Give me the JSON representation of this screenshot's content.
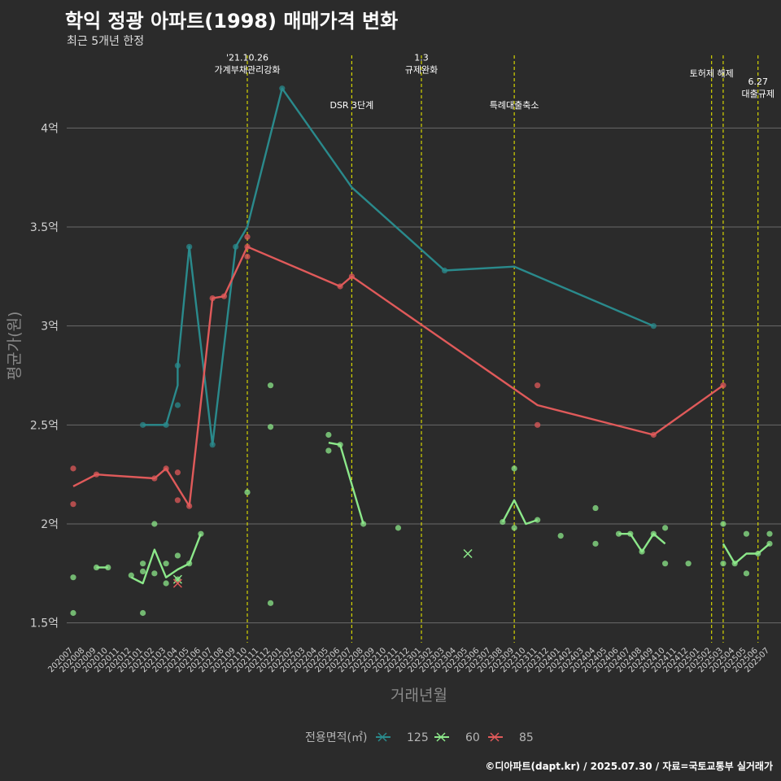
{
  "header": {
    "title": "학익 정광 아파트(1998) 매매가격 변화",
    "subtitle": "최근 5개년 한정"
  },
  "footer": "©디아파트(dapt.kr) / 2025.07.30 / 자료=국토교통부 실거래가",
  "colors": {
    "background": "#2b2b2b",
    "grid": "#6a6a6a",
    "vline": "#d4d400",
    "s125": "#2a8a8c",
    "s60": "#8ce88a",
    "s85": "#e05a5a"
  },
  "chart_data": {
    "type": "line",
    "xlabel": "거래년월",
    "ylabel": "평균가(원)",
    "ylim": [
      1.4,
      4.4
    ],
    "y_ticks": [
      {
        "v": 1.5,
        "label": "1.5억"
      },
      {
        "v": 2.0,
        "label": "2억"
      },
      {
        "v": 2.5,
        "label": "2.5억"
      },
      {
        "v": 3.0,
        "label": "3억"
      },
      {
        "v": 3.5,
        "label": "3.5억"
      },
      {
        "v": 4.0,
        "label": "4억"
      }
    ],
    "x_categories": [
      "202007",
      "202008",
      "202009",
      "202010",
      "202011",
      "202012",
      "202101",
      "202102",
      "202103",
      "202104",
      "202105",
      "202106",
      "202107",
      "202108",
      "202109",
      "202110",
      "202111",
      "202112",
      "202201",
      "202202",
      "202203",
      "202204",
      "202205",
      "202206",
      "202207",
      "202208",
      "202209",
      "202210",
      "202211",
      "202212",
      "202301",
      "202302",
      "202303",
      "202304",
      "202305",
      "202306",
      "202307",
      "202308",
      "202309",
      "202310",
      "202311",
      "202312",
      "202401",
      "202402",
      "202403",
      "202404",
      "202405",
      "202406",
      "202407",
      "202408",
      "202409",
      "202410",
      "202411",
      "202412",
      "202501",
      "202502",
      "202503",
      "202504",
      "202505",
      "202506",
      "202507"
    ],
    "legend_title": "전용면적(㎡)",
    "series": [
      {
        "name": "125",
        "line": [
          [
            "202101",
            2.5
          ],
          [
            "202103",
            2.5
          ],
          [
            "202104",
            2.7
          ],
          [
            "202104",
            2.8
          ],
          [
            "202105",
            3.4
          ],
          [
            "202107",
            2.4
          ],
          [
            "202109",
            3.4
          ],
          [
            "202110",
            3.5
          ],
          [
            "202201",
            4.2
          ],
          [
            "202207",
            3.7
          ],
          [
            "202303",
            3.28
          ],
          [
            "202309",
            3.3
          ],
          [
            "202409",
            3.0
          ]
        ],
        "points": [
          [
            "202101",
            2.5
          ],
          [
            "202103",
            2.5
          ],
          [
            "202104",
            2.6
          ],
          [
            "202104",
            2.8
          ],
          [
            "202105",
            3.4
          ],
          [
            "202107",
            2.4
          ],
          [
            "202109",
            3.4
          ],
          [
            "202201",
            4.2
          ],
          [
            "202303",
            3.28
          ],
          [
            "202409",
            3.0
          ]
        ]
      },
      {
        "name": "60",
        "line_segments": [
          [
            [
              "202009",
              1.78
            ],
            [
              "202010",
              1.78
            ]
          ],
          [
            [
              "202012",
              1.73
            ],
            [
              "202101",
              1.7
            ],
            [
              "202102",
              1.87
            ],
            [
              "202103",
              1.73
            ],
            [
              "202104",
              1.77
            ],
            [
              "202105",
              1.8
            ],
            [
              "202106",
              1.95
            ]
          ],
          [
            [
              "202205",
              2.41
            ],
            [
              "202206",
              2.4
            ],
            [
              "202208",
              2.0
            ]
          ],
          [
            [
              "202308",
              2.01
            ],
            [
              "202309",
              2.12
            ],
            [
              "202310",
              2.0
            ],
            [
              "202311",
              2.02
            ]
          ],
          [
            [
              "202406",
              1.95
            ],
            [
              "202407",
              1.95
            ],
            [
              "202408",
              1.86
            ],
            [
              "202409",
              1.95
            ],
            [
              "202410",
              1.9
            ]
          ],
          [
            [
              "202503",
              1.9
            ],
            [
              "202504",
              1.8
            ],
            [
              "202505",
              1.85
            ],
            [
              "202506",
              1.85
            ],
            [
              "202507",
              1.9
            ]
          ]
        ],
        "points": [
          [
            "202007",
            1.73
          ],
          [
            "202007",
            1.55
          ],
          [
            "202009",
            1.78
          ],
          [
            "202010",
            1.78
          ],
          [
            "202012",
            1.74
          ],
          [
            "202101",
            1.8
          ],
          [
            "202101",
            1.76
          ],
          [
            "202101",
            1.55
          ],
          [
            "202102",
            2.0
          ],
          [
            "202102",
            1.75
          ],
          [
            "202103",
            1.8
          ],
          [
            "202103",
            1.7
          ],
          [
            "202104",
            1.84
          ],
          [
            "202104",
            1.72
          ],
          [
            "202105",
            1.8
          ],
          [
            "202106",
            1.95
          ],
          [
            "202110",
            2.16
          ],
          [
            "202112",
            2.7
          ],
          [
            "202112",
            2.49
          ],
          [
            "202112",
            1.6
          ],
          [
            "202205",
            2.45
          ],
          [
            "202205",
            2.37
          ],
          [
            "202206",
            2.4
          ],
          [
            "202208",
            2.0
          ],
          [
            "202211",
            1.98
          ],
          [
            "202308",
            2.01
          ],
          [
            "202309",
            2.28
          ],
          [
            "202309",
            1.98
          ],
          [
            "202311",
            2.02
          ],
          [
            "202401",
            1.94
          ],
          [
            "202404",
            2.08
          ],
          [
            "202404",
            1.9
          ],
          [
            "202406",
            1.95
          ],
          [
            "202407",
            1.95
          ],
          [
            "202408",
            1.86
          ],
          [
            "202409",
            1.95
          ],
          [
            "202410",
            1.98
          ],
          [
            "202410",
            1.8
          ],
          [
            "202412",
            1.8
          ],
          [
            "202503",
            2.0
          ],
          [
            "202503",
            1.8
          ],
          [
            "202504",
            1.8
          ],
          [
            "202505",
            1.95
          ],
          [
            "202505",
            1.75
          ],
          [
            "202506",
            1.85
          ],
          [
            "202507",
            1.95
          ],
          [
            "202507",
            1.9
          ]
        ],
        "x_marks": [
          [
            "202305",
            1.85
          ],
          [
            "202104",
            1.72
          ]
        ]
      },
      {
        "name": "85",
        "line": [
          [
            "202007",
            2.19
          ],
          [
            "202009",
            2.25
          ],
          [
            "202102",
            2.23
          ],
          [
            "202103",
            2.28
          ],
          [
            "202105",
            2.09
          ],
          [
            "202107",
            3.14
          ],
          [
            "202108",
            3.15
          ],
          [
            "202110",
            3.4
          ],
          [
            "202206",
            3.2
          ],
          [
            "202207",
            3.25
          ],
          [
            "202311",
            2.6
          ],
          [
            "202409",
            2.45
          ],
          [
            "202503",
            2.7
          ]
        ],
        "points": [
          [
            "202007",
            2.28
          ],
          [
            "202007",
            2.1
          ],
          [
            "202009",
            2.25
          ],
          [
            "202102",
            2.23
          ],
          [
            "202103",
            2.28
          ],
          [
            "202104",
            2.26
          ],
          [
            "202104",
            2.12
          ],
          [
            "202105",
            2.09
          ],
          [
            "202107",
            3.14
          ],
          [
            "202108",
            3.15
          ],
          [
            "202110",
            3.45
          ],
          [
            "202110",
            3.4
          ],
          [
            "202110",
            3.35
          ],
          [
            "202206",
            3.2
          ],
          [
            "202207",
            3.25
          ],
          [
            "202311",
            2.7
          ],
          [
            "202311",
            2.5
          ],
          [
            "202409",
            2.45
          ],
          [
            "202503",
            2.7
          ]
        ],
        "x_marks": [
          [
            "202104",
            1.7
          ]
        ]
      }
    ],
    "annotations": [
      {
        "x": "202110",
        "lines": [
          "'21.10.26",
          "가계부채관리강화"
        ],
        "y": 4.34
      },
      {
        "x": "202207",
        "lines": [
          "DSR 3단계"
        ],
        "y": 4.1
      },
      {
        "x": "202301",
        "lines": [
          "1.3",
          "규제완화"
        ],
        "y": 4.34
      },
      {
        "x": "202309",
        "lines": [
          "특례대출축소"
        ],
        "y": 4.1
      },
      {
        "x": "202502",
        "lines": [
          "토허제 해제"
        ],
        "y": 4.26
      },
      {
        "x": "202506",
        "lines": [
          "6.27",
          "대출규제"
        ],
        "y": 4.22
      }
    ],
    "vlines": [
      "202110",
      "202207",
      "202301",
      "202309",
      "202502",
      "202503",
      "202506"
    ]
  }
}
